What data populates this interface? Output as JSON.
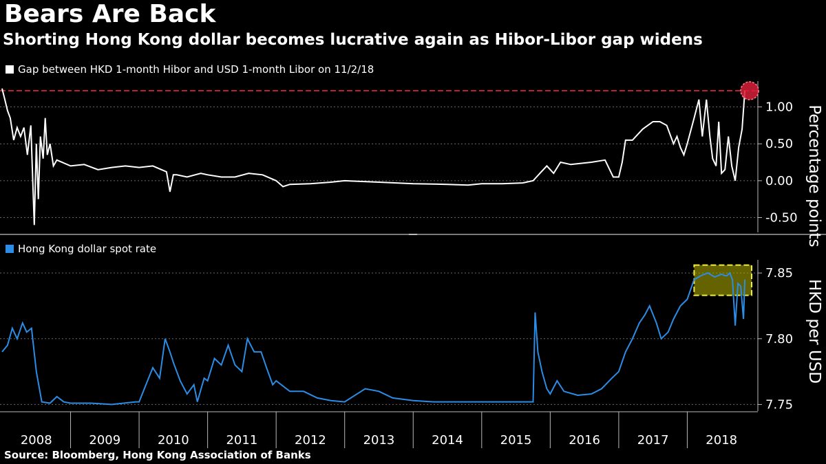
{
  "header": {
    "title": "Bears Are Back",
    "subtitle": "Shorting Hong Kong dollar becomes lucrative again as Hibor-Libor gap widens"
  },
  "source": "Source: Bloomberg, Hong Kong Association of Banks",
  "colors": {
    "background": "#000000",
    "line_top": "#ffffff",
    "line_bottom": "#2b8de6",
    "reference_line": "#e02b3c",
    "marker": "#d81e37",
    "highlight_fill": "#b7b400",
    "highlight_border": "#f2ee3a"
  },
  "chart_data": [
    {
      "type": "line",
      "legend": "Gap between HKD 1-month Hibor and USD 1-month Libor on 11/2/18",
      "ylabel": "Percentage points",
      "ylim": [
        -0.7,
        1.35
      ],
      "yticks": [
        -0.5,
        0.0,
        0.5,
        1.0
      ],
      "ytick_labels": [
        "-0.50",
        "0.00",
        "0.50",
        "1.00"
      ],
      "grid": true,
      "reference_line": 1.22,
      "annotation": "circle at latest value",
      "series": [
        {
          "x": [
            2008.0,
            2008.04,
            2008.08,
            2008.12,
            2008.17,
            2008.22,
            2008.27,
            2008.32,
            2008.37,
            2008.42,
            2008.47,
            2008.5,
            2008.53,
            2008.56,
            2008.6,
            2008.63,
            2008.66,
            2008.7,
            2008.75,
            2008.8,
            2009.0,
            2009.2,
            2009.4,
            2009.6,
            2009.8,
            2010.0,
            2010.2,
            2010.4,
            2010.45,
            2010.5,
            2010.55,
            2010.7,
            2010.9,
            2011.0,
            2011.2,
            2011.4,
            2011.6,
            2011.8,
            2012.0,
            2012.1,
            2012.2,
            2012.5,
            2012.8,
            2013.0,
            2013.5,
            2014.0,
            2014.5,
            2014.8,
            2015.0,
            2015.3,
            2015.6,
            2015.75,
            2015.85,
            2015.95,
            2016.05,
            2016.15,
            2016.3,
            2016.6,
            2016.8,
            2016.92,
            2017.0,
            2017.05,
            2017.1,
            2017.2,
            2017.35,
            2017.5,
            2017.6,
            2017.7,
            2017.8,
            2017.85,
            2017.9,
            2017.95,
            2018.0,
            2018.1,
            2018.17,
            2018.22,
            2018.28,
            2018.33,
            2018.37,
            2018.42,
            2018.46,
            2018.5,
            2018.55,
            2018.6,
            2018.65,
            2018.7,
            2018.75,
            2018.8,
            2018.84
          ],
          "y": [
            1.25,
            1.1,
            0.95,
            0.85,
            0.55,
            0.72,
            0.6,
            0.72,
            0.35,
            0.75,
            -0.6,
            0.5,
            -0.25,
            0.6,
            0.3,
            0.85,
            0.35,
            0.5,
            0.2,
            0.28,
            0.2,
            0.22,
            0.15,
            0.18,
            0.2,
            0.18,
            0.2,
            0.12,
            -0.15,
            0.08,
            0.08,
            0.05,
            0.1,
            0.08,
            0.05,
            0.05,
            0.1,
            0.08,
            0.0,
            -0.08,
            -0.05,
            -0.04,
            -0.02,
            0.0,
            -0.02,
            -0.04,
            -0.05,
            -0.06,
            -0.04,
            -0.04,
            -0.03,
            0.0,
            0.1,
            0.2,
            0.1,
            0.25,
            0.22,
            0.25,
            0.28,
            0.05,
            0.05,
            0.25,
            0.55,
            0.55,
            0.7,
            0.8,
            0.8,
            0.75,
            0.5,
            0.6,
            0.45,
            0.35,
            0.5,
            0.85,
            1.1,
            0.6,
            1.1,
            0.6,
            0.3,
            0.2,
            0.8,
            0.1,
            0.15,
            0.6,
            0.2,
            0.0,
            0.45,
            0.7,
            1.22
          ]
        }
      ]
    },
    {
      "type": "line",
      "legend": "Hong Kong dollar spot rate",
      "ylabel": "HKD per USD",
      "ylim": [
        7.745,
        7.86
      ],
      "yticks": [
        7.75,
        7.8,
        7.85
      ],
      "ytick_labels": [
        "7.75",
        "7.80",
        "7.85"
      ],
      "grid": true,
      "highlight": "box around values above 7.833 in 2018",
      "x_years": [
        "2008",
        "2009",
        "2010",
        "2011",
        "2012",
        "2013",
        "2014",
        "2015",
        "2016",
        "2017",
        "2018"
      ],
      "series": [
        {
          "x": [
            2008.0,
            2008.08,
            2008.15,
            2008.22,
            2008.3,
            2008.36,
            2008.43,
            2008.5,
            2008.58,
            2008.7,
            2008.8,
            2008.9,
            2009.0,
            2009.3,
            2009.6,
            2009.95,
            2010.0,
            2010.1,
            2010.2,
            2010.3,
            2010.38,
            2010.45,
            2010.5,
            2010.6,
            2010.7,
            2010.8,
            2010.85,
            2010.95,
            2011.0,
            2011.1,
            2011.2,
            2011.3,
            2011.4,
            2011.5,
            2011.58,
            2011.68,
            2011.78,
            2011.86,
            2011.95,
            2012.0,
            2012.2,
            2012.4,
            2012.6,
            2012.8,
            2013.0,
            2013.3,
            2013.5,
            2013.7,
            2014.0,
            2014.3,
            2014.6,
            2014.9,
            2015.0,
            2015.3,
            2015.6,
            2015.7,
            2015.75,
            2015.78,
            2015.82,
            2015.88,
            2015.95,
            2016.0,
            2016.1,
            2016.2,
            2016.4,
            2016.6,
            2016.75,
            2016.9,
            2017.0,
            2017.1,
            2017.2,
            2017.3,
            2017.38,
            2017.45,
            2017.55,
            2017.62,
            2017.72,
            2017.8,
            2017.9,
            2018.0,
            2018.1,
            2018.2,
            2018.3,
            2018.4,
            2018.5,
            2018.55,
            2018.58,
            2018.62,
            2018.66,
            2018.7,
            2018.74,
            2018.78,
            2018.82,
            2018.84
          ],
          "y": [
            7.79,
            7.795,
            7.808,
            7.8,
            7.812,
            7.805,
            7.808,
            7.775,
            7.752,
            7.751,
            7.756,
            7.752,
            7.751,
            7.751,
            7.75,
            7.752,
            7.752,
            7.765,
            7.778,
            7.77,
            7.8,
            7.79,
            7.782,
            7.768,
            7.758,
            7.765,
            7.752,
            7.77,
            7.768,
            7.785,
            7.78,
            7.795,
            7.78,
            7.775,
            7.8,
            7.79,
            7.79,
            7.778,
            7.765,
            7.768,
            7.76,
            7.76,
            7.755,
            7.753,
            7.752,
            7.762,
            7.76,
            7.755,
            7.753,
            7.752,
            7.752,
            7.752,
            7.752,
            7.752,
            7.752,
            7.752,
            7.752,
            7.82,
            7.79,
            7.775,
            7.762,
            7.758,
            7.768,
            7.76,
            7.757,
            7.758,
            7.762,
            7.77,
            7.775,
            7.79,
            7.8,
            7.812,
            7.818,
            7.825,
            7.812,
            7.8,
            7.805,
            7.815,
            7.825,
            7.83,
            7.845,
            7.848,
            7.85,
            7.847,
            7.849,
            7.848,
            7.848,
            7.85,
            7.845,
            7.81,
            7.842,
            7.84,
            7.815,
            7.845
          ]
        }
      ]
    }
  ]
}
